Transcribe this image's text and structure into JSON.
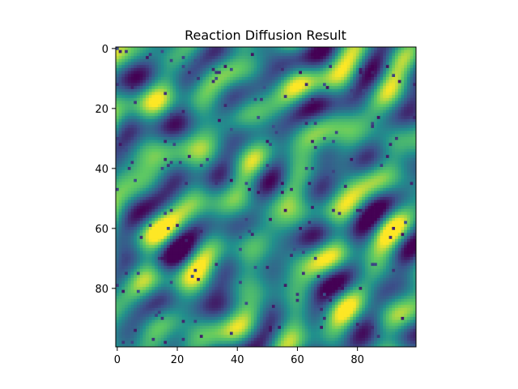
{
  "chart_data": {
    "type": "heatmap",
    "title": "Reaction Diffusion Result",
    "xlabel": "",
    "ylabel": "",
    "grid_size": [
      100,
      100
    ],
    "xlim": [
      -0.5,
      99.5
    ],
    "ylim": [
      99.5,
      -0.5
    ],
    "y_axis_inverted": true,
    "colormap": "viridis",
    "value_range": [
      0,
      1
    ],
    "x_ticks": [
      0,
      20,
      40,
      60,
      80
    ],
    "y_ticks": [
      0,
      20,
      40,
      60,
      80
    ],
    "grid": false,
    "colormap_colors": [
      "#440154",
      "#3b528b",
      "#21918c",
      "#5ec962",
      "#fde725"
    ],
    "pattern": {
      "description_hidden": true,
      "waves": [
        {
          "kx": 0.19,
          "ky": 0.17,
          "amp": 0.32,
          "phase": 0.4
        },
        {
          "kx": 0.11,
          "ky": 0.21,
          "amp": 0.22,
          "phase": 1.9
        },
        {
          "kx": 0.27,
          "ky": 0.09,
          "amp": 0.18,
          "phase": 2.7
        },
        {
          "kx": 0.07,
          "ky": 0.31,
          "amp": 0.14,
          "phase": 0.9
        },
        {
          "kx": 0.23,
          "ky": 0.26,
          "amp": 0.12,
          "phase": 4.1
        }
      ],
      "speckle_fraction": 0.018,
      "seed": 7
    }
  }
}
